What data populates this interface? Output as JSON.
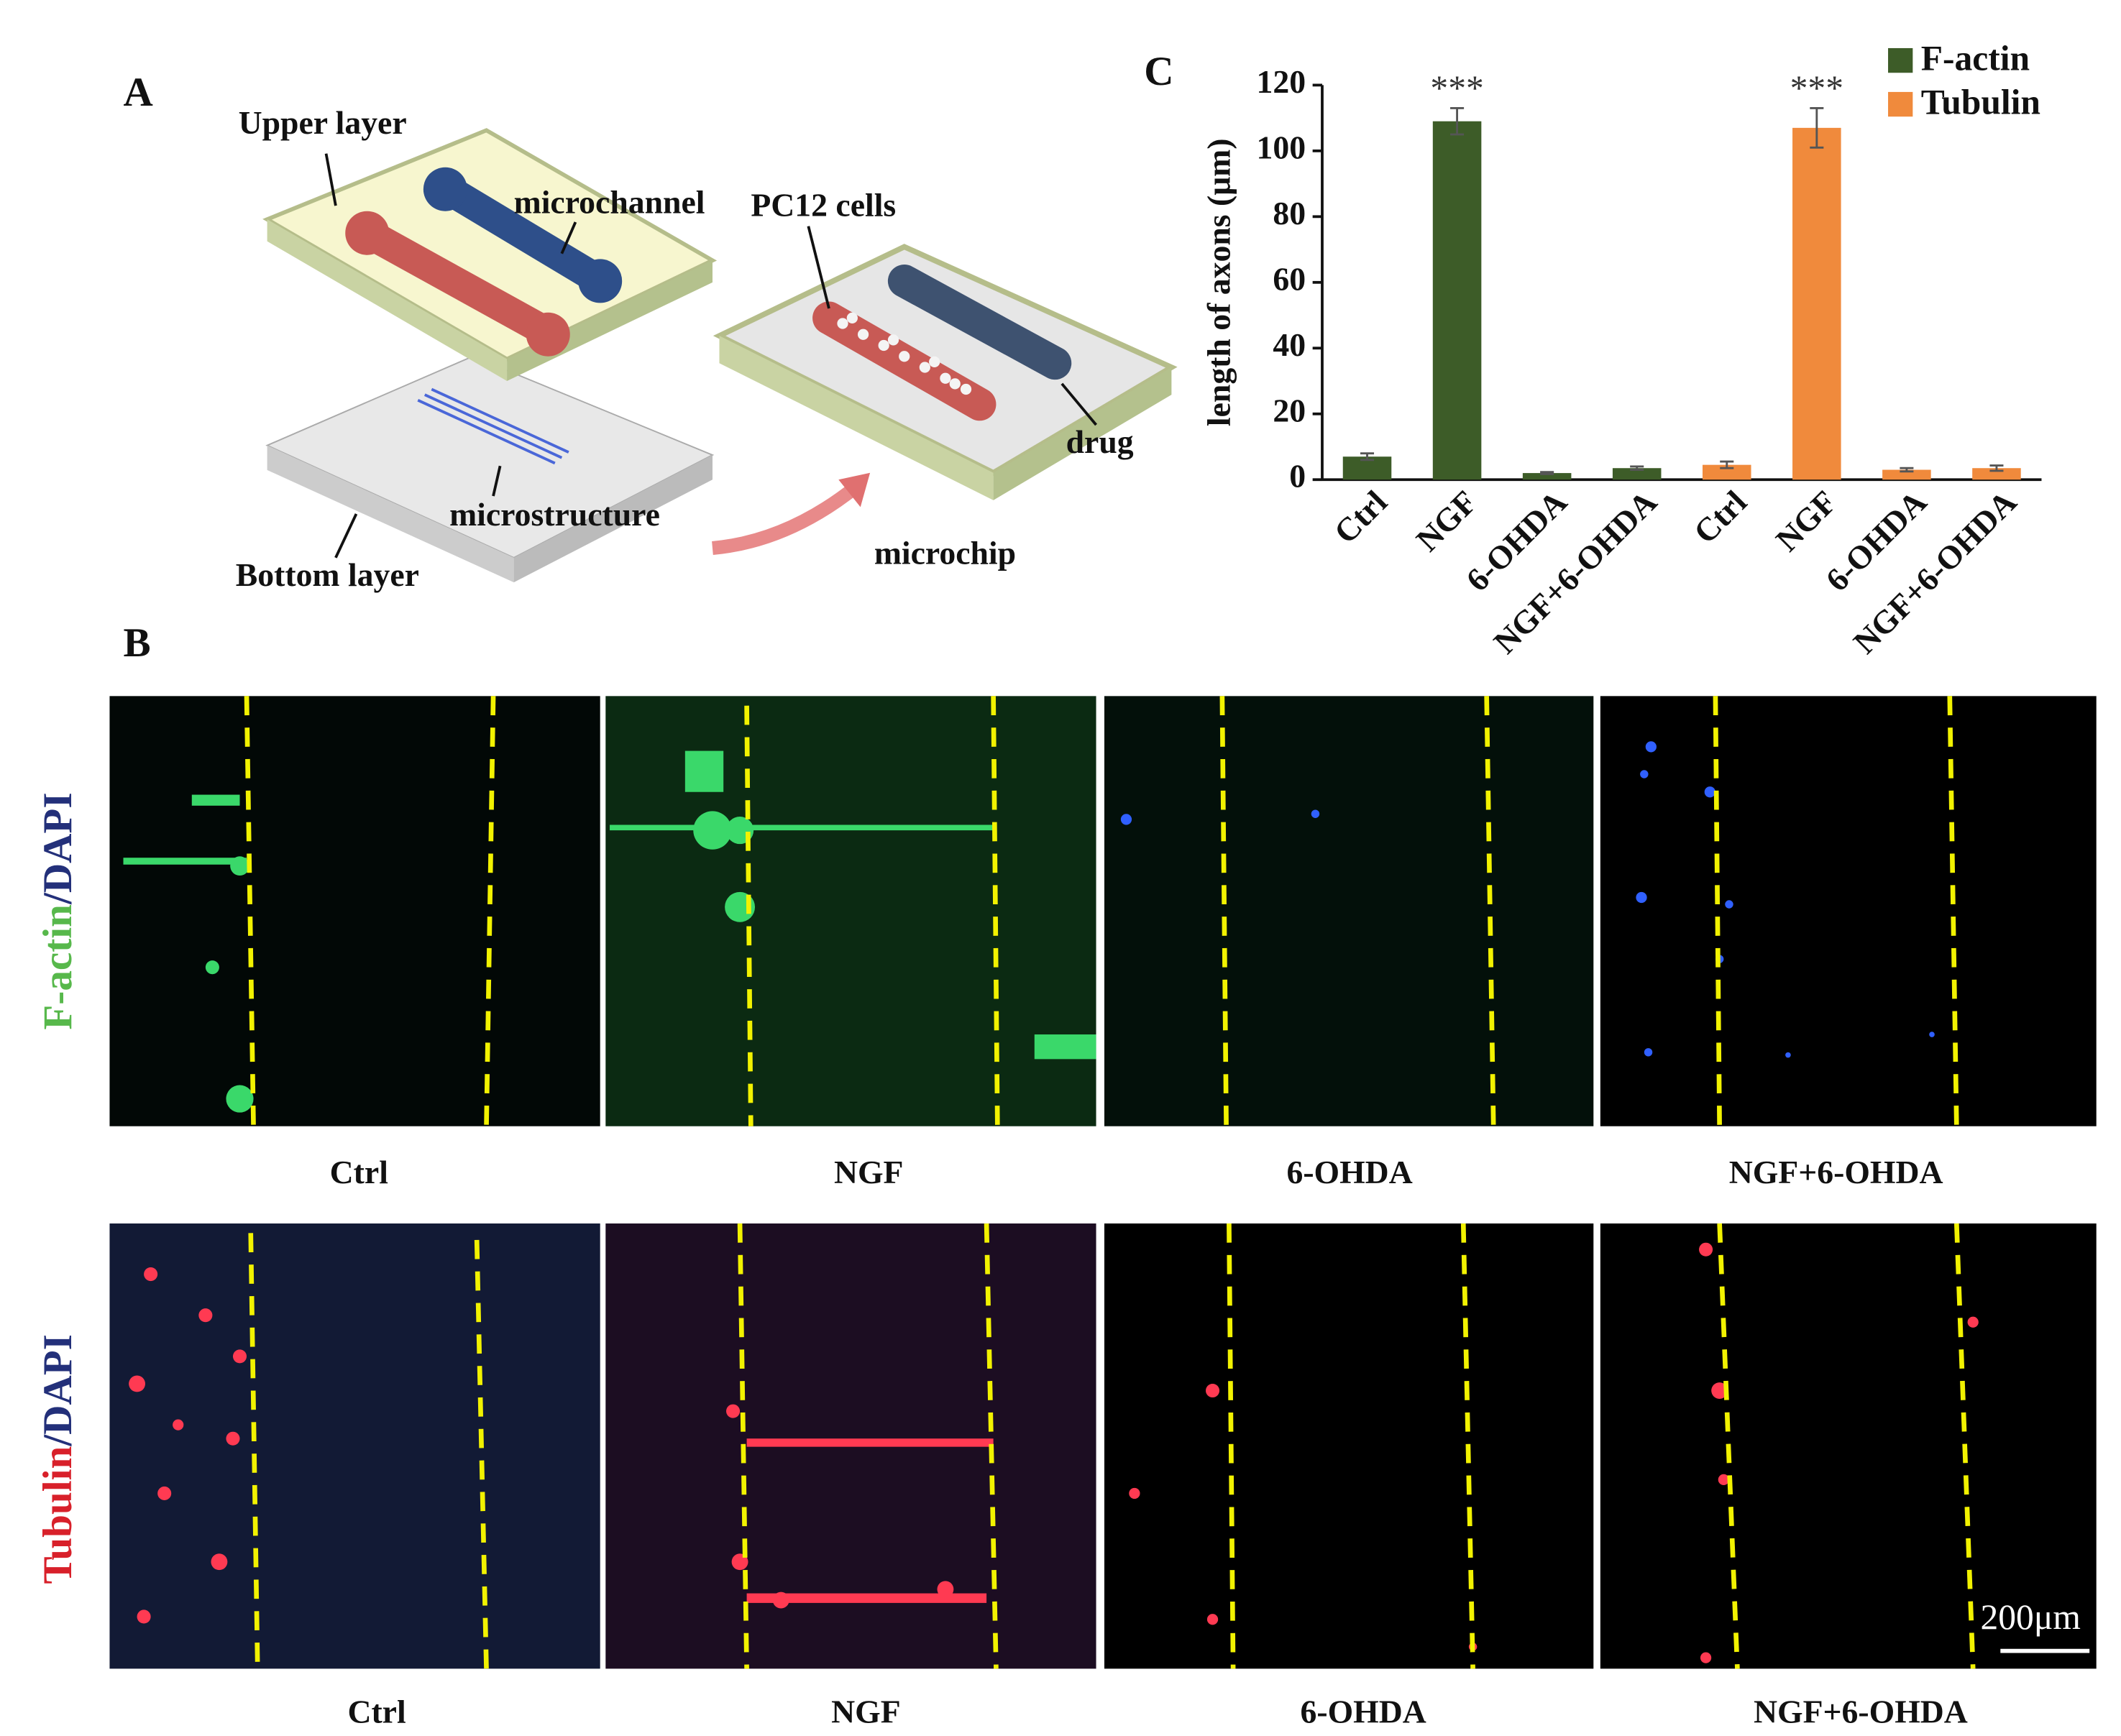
{
  "panels": {
    "a": "A",
    "b": "B",
    "c": "C"
  },
  "diagram": {
    "upper_layer": "Upper layer",
    "microchannel": "microchannel",
    "pc12_cells": "PC12 cells",
    "drug": "drug",
    "microstructure": "microstructure",
    "bottom_layer": "Bottom layer",
    "microchip": "microchip"
  },
  "chart_data": {
    "type": "bar",
    "ylabel": "length of axons (μm)",
    "categories": [
      "Ctrl",
      "NGF",
      "6-OHDA",
      "NGF+6-OHDA",
      "Ctrl",
      "NGF",
      "6-OHDA",
      "NGF+6-OHDA"
    ],
    "series": [
      {
        "name": "F-actin",
        "color": "#3d5c28",
        "values": [
          7,
          109,
          2,
          3.5,
          null,
          null,
          null,
          null
        ],
        "errors": [
          1,
          4,
          0.3,
          0.5,
          null,
          null,
          null,
          null
        ]
      },
      {
        "name": "Tubulin",
        "color": "#f08a3c",
        "values": [
          null,
          null,
          null,
          null,
          4.5,
          107,
          3,
          3.5
        ],
        "errors": [
          null,
          null,
          null,
          null,
          1,
          6,
          0.5,
          0.8
        ]
      }
    ],
    "annotations": [
      "***",
      "***"
    ],
    "ylim": [
      0,
      120
    ],
    "yticks": [
      0,
      20,
      40,
      60,
      80,
      100,
      120
    ],
    "legend": "top-right"
  },
  "micrographs": {
    "row_labels": [
      {
        "stain": "F-actin",
        "counter": "/DAPI"
      },
      {
        "stain": "Tubulin",
        "counter": "/DAPI"
      }
    ],
    "row1_conditions": [
      "Ctrl",
      "NGF",
      "6-OHDA",
      "NGF+6-OHDA"
    ],
    "row2_conditions": [
      "Ctrl",
      "NGF",
      "6-OHDA",
      "NGF+6-OHDA"
    ],
    "scale_bar": "200μm"
  }
}
